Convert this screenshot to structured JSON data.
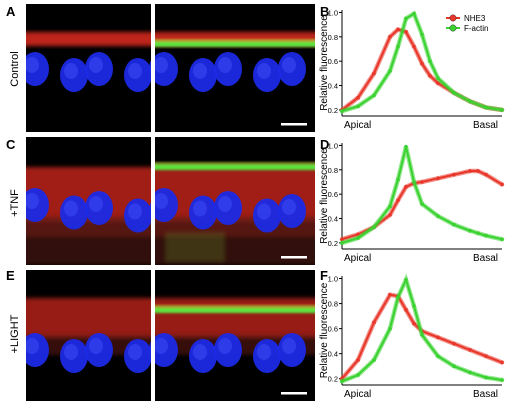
{
  "rows": [
    {
      "letter_left": "A",
      "letter_right": "B",
      "condition": "Control"
    },
    {
      "letter_left": "C",
      "letter_right": "D",
      "condition": "+TNF"
    },
    {
      "letter_left": "E",
      "letter_right": "F",
      "condition": "+LIGHT"
    }
  ],
  "colors": {
    "nhe3": "#e8372a",
    "factin": "#39d22f",
    "nucleus": "#2030e0"
  },
  "chart_data": [
    {
      "type": "line",
      "xlabel": "",
      "ylabel": "Relative fluorescence",
      "x_tick_labels": [
        "Apical",
        "Basal"
      ],
      "y_ticks": [
        "0.2",
        "0.4",
        "0.6",
        "0.8",
        "1.0"
      ],
      "ylim": [
        0.15,
        1.02
      ],
      "legend": [
        "NHE3",
        "F-actin"
      ],
      "legend_position": "top-right",
      "x": [
        0,
        0.1,
        0.2,
        0.3,
        0.35,
        0.4,
        0.45,
        0.5,
        0.55,
        0.6,
        0.7,
        0.8,
        0.9,
        1.0
      ],
      "series": [
        {
          "name": "NHE3",
          "values": [
            0.2,
            0.3,
            0.5,
            0.8,
            0.86,
            0.84,
            0.72,
            0.58,
            0.48,
            0.42,
            0.34,
            0.27,
            0.22,
            0.2
          ]
        },
        {
          "name": "F-actin",
          "values": [
            0.19,
            0.23,
            0.32,
            0.52,
            0.72,
            0.95,
            0.99,
            0.82,
            0.6,
            0.46,
            0.34,
            0.27,
            0.22,
            0.2
          ]
        }
      ]
    },
    {
      "type": "line",
      "xlabel": "",
      "ylabel": "Relative fluorescence",
      "x_tick_labels": [
        "Apical",
        "Basal"
      ],
      "y_ticks": [
        "0.2",
        "0.4",
        "0.6",
        "0.8",
        "1.0"
      ],
      "ylim": [
        0.15,
        1.02
      ],
      "x": [
        0,
        0.1,
        0.2,
        0.3,
        0.35,
        0.4,
        0.45,
        0.5,
        0.6,
        0.7,
        0.8,
        0.85,
        0.9,
        1.0
      ],
      "series": [
        {
          "name": "NHE3",
          "values": [
            0.23,
            0.27,
            0.33,
            0.43,
            0.55,
            0.66,
            0.69,
            0.7,
            0.73,
            0.76,
            0.79,
            0.79,
            0.76,
            0.68
          ]
        },
        {
          "name": "F-actin",
          "values": [
            0.2,
            0.24,
            0.33,
            0.5,
            0.72,
            0.99,
            0.7,
            0.52,
            0.42,
            0.35,
            0.3,
            0.28,
            0.26,
            0.23
          ]
        }
      ]
    },
    {
      "type": "line",
      "xlabel": "",
      "ylabel": "Relative fluorescence",
      "x_tick_labels": [
        "Apical",
        "Basal"
      ],
      "y_ticks": [
        "0.2",
        "0.4",
        "0.6",
        "0.8",
        "1.0"
      ],
      "ylim": [
        0.15,
        1.02
      ],
      "x": [
        0,
        0.1,
        0.2,
        0.3,
        0.35,
        0.4,
        0.45,
        0.5,
        0.6,
        0.7,
        0.8,
        0.9,
        1.0
      ],
      "series": [
        {
          "name": "NHE3",
          "values": [
            0.2,
            0.35,
            0.65,
            0.87,
            0.86,
            0.75,
            0.64,
            0.58,
            0.53,
            0.48,
            0.43,
            0.38,
            0.33
          ]
        },
        {
          "name": "F-actin",
          "values": [
            0.18,
            0.23,
            0.35,
            0.6,
            0.85,
            0.99,
            0.78,
            0.55,
            0.38,
            0.3,
            0.25,
            0.21,
            0.19
          ]
        }
      ]
    }
  ]
}
